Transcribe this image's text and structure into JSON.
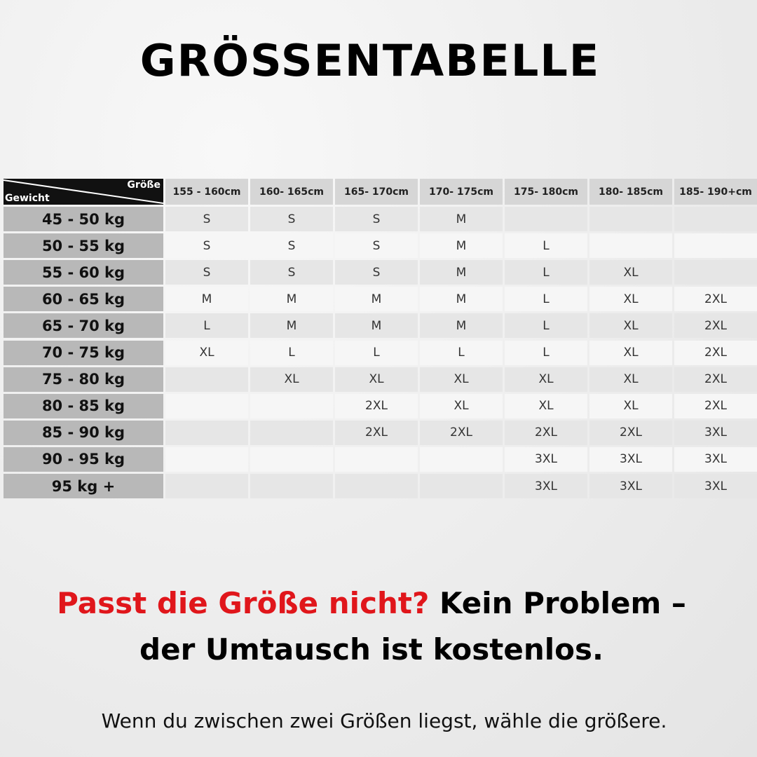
{
  "title": "GRÖSSENTABELLE",
  "table": {
    "corner_top": "Größe",
    "corner_bottom": "Gewicht",
    "columns": [
      "155 - 160cm",
      "160- 165cm",
      "165- 170cm",
      "170- 175cm",
      "175- 180cm",
      "180- 185cm",
      "185- 190+cm"
    ],
    "rows": [
      {
        "label": "45 - 50 kg",
        "cells": [
          "S",
          "S",
          "S",
          "M",
          null,
          null,
          null
        ]
      },
      {
        "label": "50 - 55 kg",
        "cells": [
          "S",
          "S",
          "S",
          "M",
          "L",
          null,
          null
        ]
      },
      {
        "label": "55 - 60 kg",
        "cells": [
          "S",
          "S",
          "S",
          "M",
          "L",
          "XL",
          null
        ]
      },
      {
        "label": "60 - 65 kg",
        "cells": [
          "M",
          "M",
          "M",
          "M",
          "L",
          "XL",
          "2XL"
        ]
      },
      {
        "label": "65 - 70 kg",
        "cells": [
          "L",
          "M",
          "M",
          "M",
          "L",
          "XL",
          "2XL"
        ]
      },
      {
        "label": "70 - 75 kg",
        "cells": [
          "XL",
          "L",
          "L",
          "L",
          "L",
          "XL",
          "2XL"
        ]
      },
      {
        "label": "75 - 80 kg",
        "cells": [
          null,
          "XL",
          "XL",
          "XL",
          "XL",
          "XL",
          "2XL"
        ]
      },
      {
        "label": "80 - 85 kg",
        "cells": [
          null,
          null,
          "2XL",
          "XL",
          "XL",
          "XL",
          "2XL"
        ]
      },
      {
        "label": "85 - 90 kg",
        "cells": [
          null,
          null,
          "2XL",
          "2XL",
          "2XL",
          "2XL",
          "3XL"
        ]
      },
      {
        "label": "90 - 95 kg",
        "cells": [
          null,
          null,
          null,
          null,
          "3XL",
          "3XL",
          "3XL"
        ]
      },
      {
        "label": "95 kg +",
        "cells": [
          null,
          null,
          null,
          null,
          "3XL",
          "3XL",
          "3XL"
        ]
      }
    ]
  },
  "tagline": {
    "highlight": "Passt die Größe nicht?",
    "line1_rest": "Kein Problem –",
    "line2": "der Umtausch ist kostenlos."
  },
  "note": "Wenn du zwischen zwei Größen liegst, wähle die größere."
}
